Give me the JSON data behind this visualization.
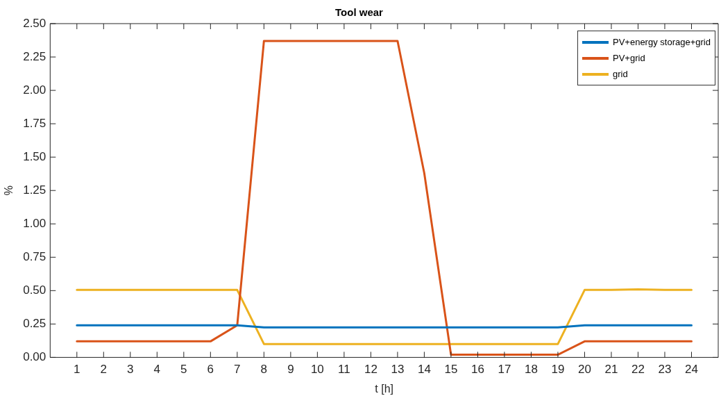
{
  "chart_data": {
    "type": "line",
    "title": "Tool wear",
    "xlabel": "t [h]",
    "ylabel": "%",
    "x": [
      1,
      2,
      3,
      4,
      5,
      6,
      7,
      8,
      9,
      10,
      11,
      12,
      13,
      14,
      15,
      16,
      17,
      18,
      19,
      20,
      21,
      22,
      23,
      24
    ],
    "series": [
      {
        "name": "PV+energy storage+grid",
        "color": "#0072bd",
        "values": [
          0.24,
          0.24,
          0.24,
          0.24,
          0.24,
          0.24,
          0.24,
          0.225,
          0.225,
          0.225,
          0.225,
          0.225,
          0.225,
          0.225,
          0.225,
          0.225,
          0.225,
          0.225,
          0.225,
          0.24,
          0.24,
          0.24,
          0.24,
          0.24
        ]
      },
      {
        "name": "PV+grid",
        "color": "#d95319",
        "values": [
          0.12,
          0.12,
          0.12,
          0.12,
          0.12,
          0.12,
          0.24,
          2.37,
          2.37,
          2.37,
          2.37,
          2.37,
          2.37,
          1.38,
          0.02,
          0.02,
          0.02,
          0.02,
          0.02,
          0.12,
          0.12,
          0.12,
          0.12,
          0.12
        ]
      },
      {
        "name": "grid",
        "color": "#edb120",
        "values": [
          0.505,
          0.505,
          0.505,
          0.505,
          0.505,
          0.505,
          0.505,
          0.1,
          0.1,
          0.1,
          0.1,
          0.1,
          0.1,
          0.1,
          0.1,
          0.1,
          0.1,
          0.1,
          0.1,
          0.505,
          0.505,
          0.51,
          0.505,
          0.505
        ]
      }
    ],
    "xlim": [
      0,
      25
    ],
    "xticks": [
      1,
      2,
      3,
      4,
      5,
      6,
      7,
      8,
      9,
      10,
      11,
      12,
      13,
      14,
      15,
      16,
      17,
      18,
      19,
      20,
      21,
      22,
      23,
      24
    ],
    "ylim": [
      0,
      2.5
    ],
    "yticks": [
      {
        "value": 0,
        "label": "0.00"
      },
      {
        "value": 0.25,
        "label": "0.25"
      },
      {
        "value": 0.5,
        "label": "0.50"
      },
      {
        "value": 0.75,
        "label": "0.75"
      },
      {
        "value": 1,
        "label": "1.00"
      },
      {
        "value": 1.25,
        "label": "1.25"
      },
      {
        "value": 1.5,
        "label": "1.50"
      },
      {
        "value": 1.75,
        "label": "1.75"
      },
      {
        "value": 2,
        "label": "2.00"
      },
      {
        "value": 2.25,
        "label": "2.25"
      },
      {
        "value": 2.5,
        "label": "2.50"
      }
    ],
    "grid": false,
    "legend": "top right",
    "marker": "none",
    "line_style": "solid"
  }
}
